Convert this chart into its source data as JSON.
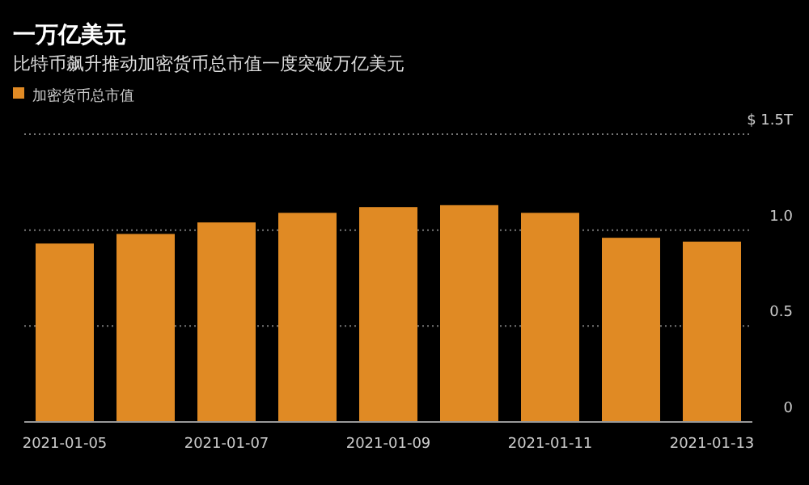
{
  "chart_data": {
    "type": "bar",
    "title": "一万亿美元",
    "subtitle": "比特币飙升推动加密货币总市值一度突破万亿美元",
    "categories": [
      "2021-01-05",
      null,
      "2021-01-07",
      null,
      "2021-01-09",
      null,
      "2021-01-11",
      null,
      "2021-01-13"
    ],
    "series": [
      {
        "name": "加密货币总市值",
        "color": "#e08a24",
        "values": [
          0.93,
          0.98,
          1.04,
          1.09,
          1.12,
          1.13,
          1.09,
          0.96,
          0.94
        ]
      }
    ],
    "ylim": [
      0,
      1.5
    ],
    "yticks": [
      0,
      0.5,
      {
        "value": 1,
        "label": "1.0"
      },
      {
        "value": 1.5,
        "label": "$ 1.5T"
      }
    ],
    "grid": "y",
    "legend": "top left"
  }
}
